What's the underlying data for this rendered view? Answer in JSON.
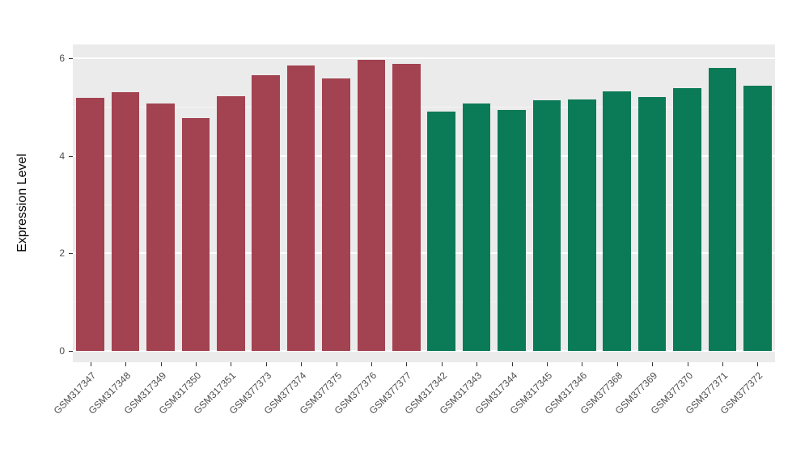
{
  "chart_data": {
    "type": "bar",
    "title": "",
    "xlabel": "",
    "ylabel": "Expression Level",
    "legend": "none",
    "grid": true,
    "panel_bg": "#EBEBEB",
    "grid_color": "#FFFFFF",
    "yticks": [
      0,
      2,
      4,
      6
    ],
    "minor_yticks": [
      1,
      3,
      5
    ],
    "ylim": [
      0,
      6.3
    ],
    "categories": [
      "GSM317347",
      "GSM317348",
      "GSM317349",
      "GSM317350",
      "GSM317351",
      "GSM377373",
      "GSM377374",
      "GSM377375",
      "GSM377376",
      "GSM377377",
      "GSM317342",
      "GSM317343",
      "GSM317344",
      "GSM317345",
      "GSM317346",
      "GSM377368",
      "GSM377369",
      "GSM377370",
      "GSM377371",
      "GSM377372"
    ],
    "values": [
      5.18,
      5.3,
      5.08,
      4.78,
      5.22,
      5.66,
      5.85,
      5.58,
      5.97,
      5.88,
      4.9,
      5.07,
      4.94,
      5.14,
      5.15,
      5.32,
      5.2,
      5.38,
      5.8,
      5.43
    ],
    "groups": [
      "group1",
      "group1",
      "group1",
      "group1",
      "group1",
      "group1",
      "group1",
      "group1",
      "group1",
      "group1",
      "group2",
      "group2",
      "group2",
      "group2",
      "group2",
      "group2",
      "group2",
      "group2",
      "group2",
      "group2"
    ],
    "group_colors": {
      "group1": "#A34250",
      "group2": "#0B7A56"
    }
  }
}
